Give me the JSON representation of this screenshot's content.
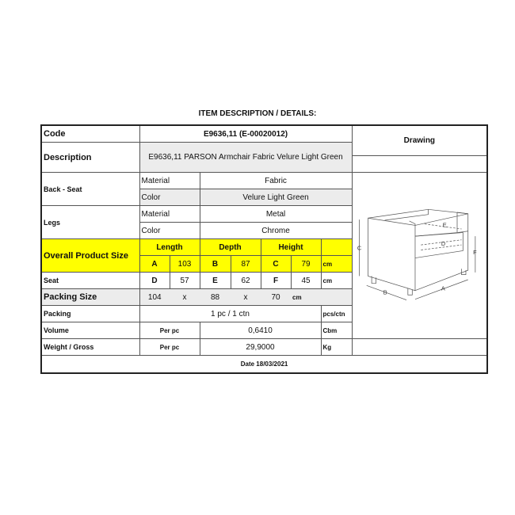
{
  "title": "ITEM DESCRIPTION / DETAILS:",
  "code": {
    "label": "Code",
    "value": "E9636,11 (E-00020012)"
  },
  "description": {
    "label": "Description",
    "value": "E9636,11 PARSON Armchair Fabric Velure Light Green"
  },
  "drawing_label": "Drawing",
  "back_seat": {
    "label": "Back - Seat",
    "material_label": "Material",
    "material": "Fabric",
    "color_label": "Color",
    "color": "Velure Light Green"
  },
  "legs": {
    "label": "Legs",
    "material_label": "Material",
    "material": "Metal",
    "color_label": "Color",
    "color": "Chrome"
  },
  "overall": {
    "label": "Overall Product Size",
    "length_label": "Length",
    "depth_label": "Depth",
    "height_label": "Height",
    "a": "A",
    "a_val": "103",
    "b": "B",
    "b_val": "87",
    "c": "C",
    "c_val": "79",
    "unit": "cm"
  },
  "seat": {
    "label": "Seat",
    "d": "D",
    "d_val": "57",
    "e": "E",
    "e_val": "62",
    "f": "F",
    "f_val": "45",
    "unit": "cm"
  },
  "packing_size": {
    "label": "Packing Size",
    "l": "104",
    "x1": "x",
    "w": "88",
    "x2": "x",
    "h": "70",
    "unit": "cm"
  },
  "packing": {
    "label": "Packing",
    "value": "1 pc / 1 ctn",
    "unit": "pcs/ctn"
  },
  "volume": {
    "label": "Volume",
    "per": "Per pc",
    "value": "0,6410",
    "unit": "Cbm"
  },
  "weight": {
    "label": "Weight / Gross",
    "per": "Per pc",
    "value": "29,9000",
    "unit": "Kg"
  },
  "date": "Date 18/03/2021",
  "drawing_letters": {
    "a": "A",
    "b": "B",
    "c": "C",
    "d": "D",
    "e": "E",
    "f": "F"
  },
  "colors": {
    "highlight": "#ffff00",
    "shade": "#ececec"
  }
}
